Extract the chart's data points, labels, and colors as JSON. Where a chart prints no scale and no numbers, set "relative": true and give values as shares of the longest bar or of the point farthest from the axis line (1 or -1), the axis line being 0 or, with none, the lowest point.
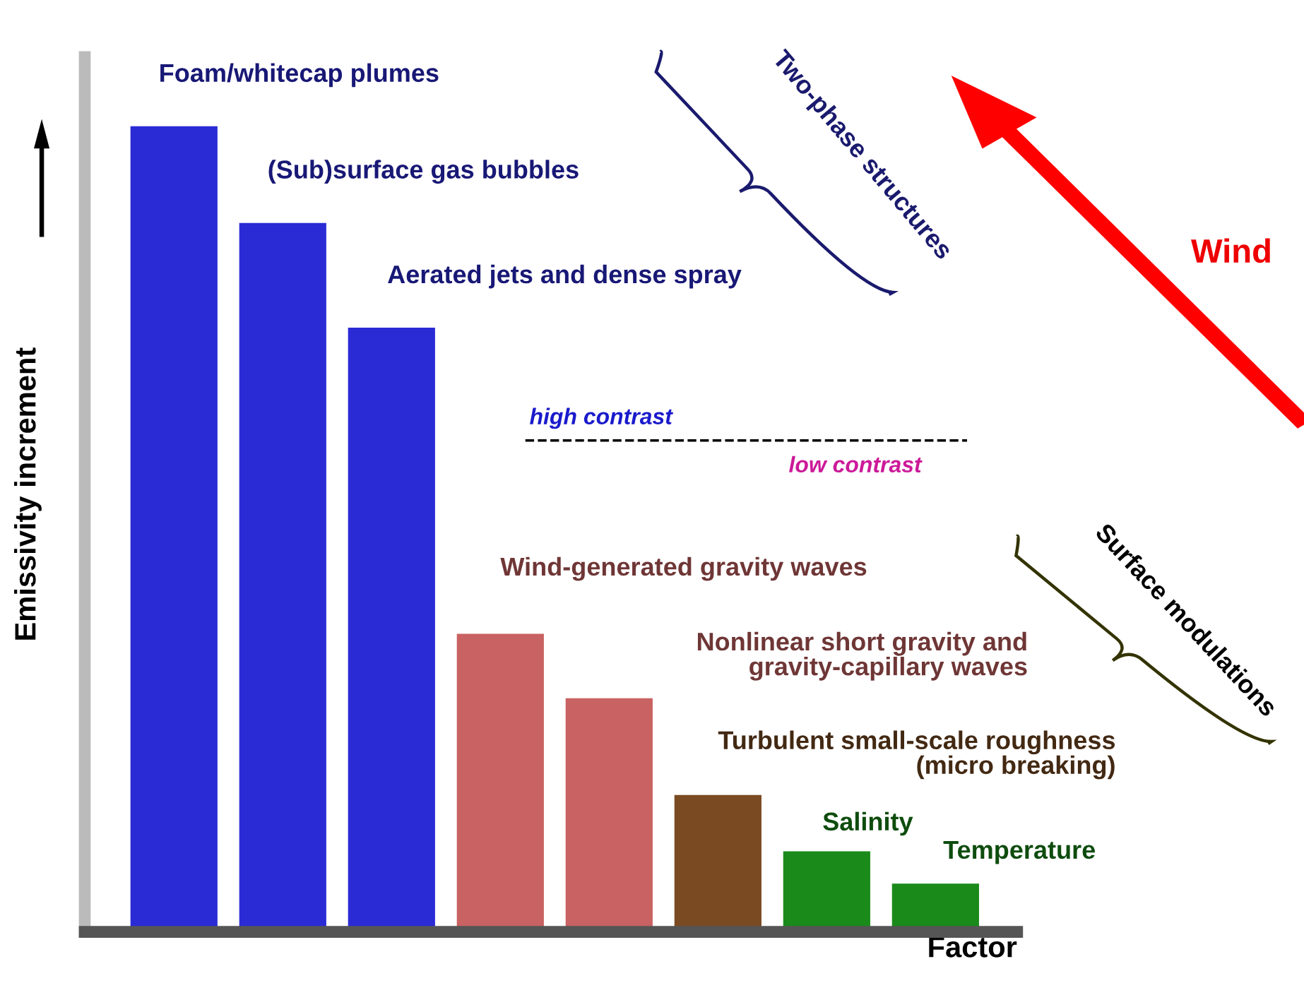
{
  "chart_data": {
    "type": "bar",
    "relative": true,
    "xlabel": "Factor",
    "ylabel": "Emissivity increment",
    "categories": [
      null,
      null,
      null,
      null,
      null,
      null,
      null,
      null
    ],
    "values": [
      1,
      0.88,
      0.75,
      0.37,
      0.29,
      0.17,
      0.1,
      0.06
    ],
    "colors": [
      "#2b2bd6",
      "#2b2bd6",
      "#2b2bd6",
      "#c96262",
      "#c96262",
      "#7a4a22",
      "#1a8a1a",
      "#1a8a1a"
    ],
    "ref_lines": [
      {
        "axis": "y",
        "value": 0.61,
        "line_style": "dashed",
        "color": "#000000"
      }
    ],
    "annotations": [
      "Foam/whitecap plumes",
      "(Sub)surface gas bubbles",
      "Aerated jets and dense spray",
      "Wind-generated gravity waves",
      "Nonlinear short gravity and\ngravity-capillary waves",
      "Turbulent small-scale roughness\n(micro breaking)",
      "Salinity",
      "Temperature",
      "high contrast",
      "low contrast",
      "Two-phase structures",
      "Surface modulations",
      "Wind"
    ],
    "legend": false
  }
}
